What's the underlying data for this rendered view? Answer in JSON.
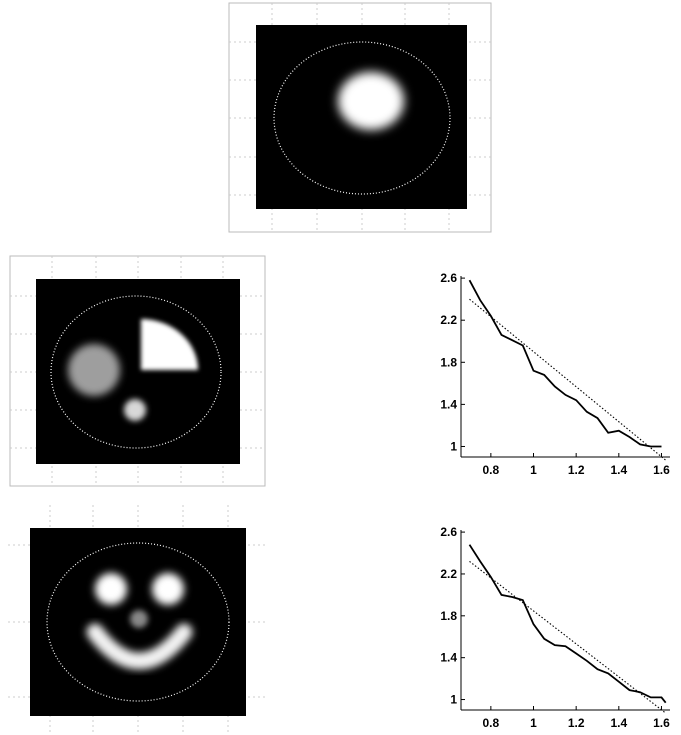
{
  "chart_data": [
    {
      "type": "heatmap",
      "panel": "top",
      "shapes": [
        {
          "kind": "ellipse",
          "intensity": 1.0,
          "blur": 5
        }
      ]
    },
    {
      "type": "heatmap",
      "panel": "middle",
      "shapes": [
        {
          "kind": "circle",
          "intensity": 0.62,
          "blur": 4
        },
        {
          "kind": "quarter-disk",
          "intensity": 1.0,
          "blur": 2
        },
        {
          "kind": "circle",
          "intensity": 0.85,
          "blur": 3
        }
      ]
    },
    {
      "type": "heatmap",
      "panel": "bottom",
      "shapes": [
        {
          "kind": "circle",
          "intensity": 1.0,
          "blur": 4
        },
        {
          "kind": "circle",
          "intensity": 1.0,
          "blur": 4
        },
        {
          "kind": "circle",
          "intensity": 0.5,
          "blur": 3
        },
        {
          "kind": "arc",
          "intensity": 0.95,
          "blur": 4
        }
      ]
    },
    {
      "type": "line",
      "panel": "middle-right",
      "xlim": [
        0.66,
        1.64
      ],
      "ylim": [
        0.9,
        2.62
      ],
      "xticks": [
        "0.8",
        "1",
        "1.2",
        "1.4",
        "1.6"
      ],
      "xtick_values": [
        0.8,
        1.0,
        1.2,
        1.4,
        1.6
      ],
      "yticks": [
        "2.6",
        "2.2",
        "1.8",
        "1.4",
        "1"
      ],
      "ytick_values": [
        2.6,
        2.2,
        1.8,
        1.4,
        1.0
      ],
      "series": [
        {
          "style": "solid",
          "x": [
            0.7,
            0.75,
            0.8,
            0.85,
            0.9,
            0.95,
            1.0,
            1.05,
            1.1,
            1.15,
            1.2,
            1.25,
            1.3,
            1.35,
            1.4,
            1.45,
            1.5,
            1.55,
            1.6
          ],
          "y": [
            2.58,
            2.39,
            2.24,
            2.06,
            2.01,
            1.96,
            1.72,
            1.68,
            1.57,
            1.49,
            1.44,
            1.33,
            1.27,
            1.13,
            1.15,
            1.09,
            1.02,
            1.0,
            1.0
          ]
        },
        {
          "style": "dotted",
          "x": [
            0.7,
            1.62
          ],
          "y": [
            2.4,
            0.87
          ]
        }
      ]
    },
    {
      "type": "line",
      "panel": "bottom-right",
      "xlim": [
        0.66,
        1.64
      ],
      "ylim": [
        0.9,
        2.62
      ],
      "xticks": [
        "0.8",
        "1",
        "1.2",
        "1.4",
        "1.6"
      ],
      "xtick_values": [
        0.8,
        1.0,
        1.2,
        1.4,
        1.6
      ],
      "yticks": [
        "2.6",
        "2.2",
        "1.8",
        "1.4",
        "1"
      ],
      "ytick_values": [
        2.6,
        2.2,
        1.8,
        1.4,
        1.0
      ],
      "series": [
        {
          "style": "solid",
          "x": [
            0.7,
            0.75,
            0.8,
            0.85,
            0.9,
            0.95,
            1.0,
            1.05,
            1.1,
            1.15,
            1.2,
            1.25,
            1.3,
            1.35,
            1.4,
            1.45,
            1.5,
            1.55,
            1.6,
            1.62
          ],
          "y": [
            2.48,
            2.32,
            2.17,
            2.0,
            1.98,
            1.95,
            1.72,
            1.58,
            1.52,
            1.51,
            1.44,
            1.37,
            1.29,
            1.25,
            1.17,
            1.09,
            1.07,
            1.02,
            1.02,
            0.97
          ]
        },
        {
          "style": "dotted",
          "x": [
            0.7,
            1.62
          ],
          "y": [
            2.32,
            0.87
          ]
        }
      ]
    }
  ]
}
